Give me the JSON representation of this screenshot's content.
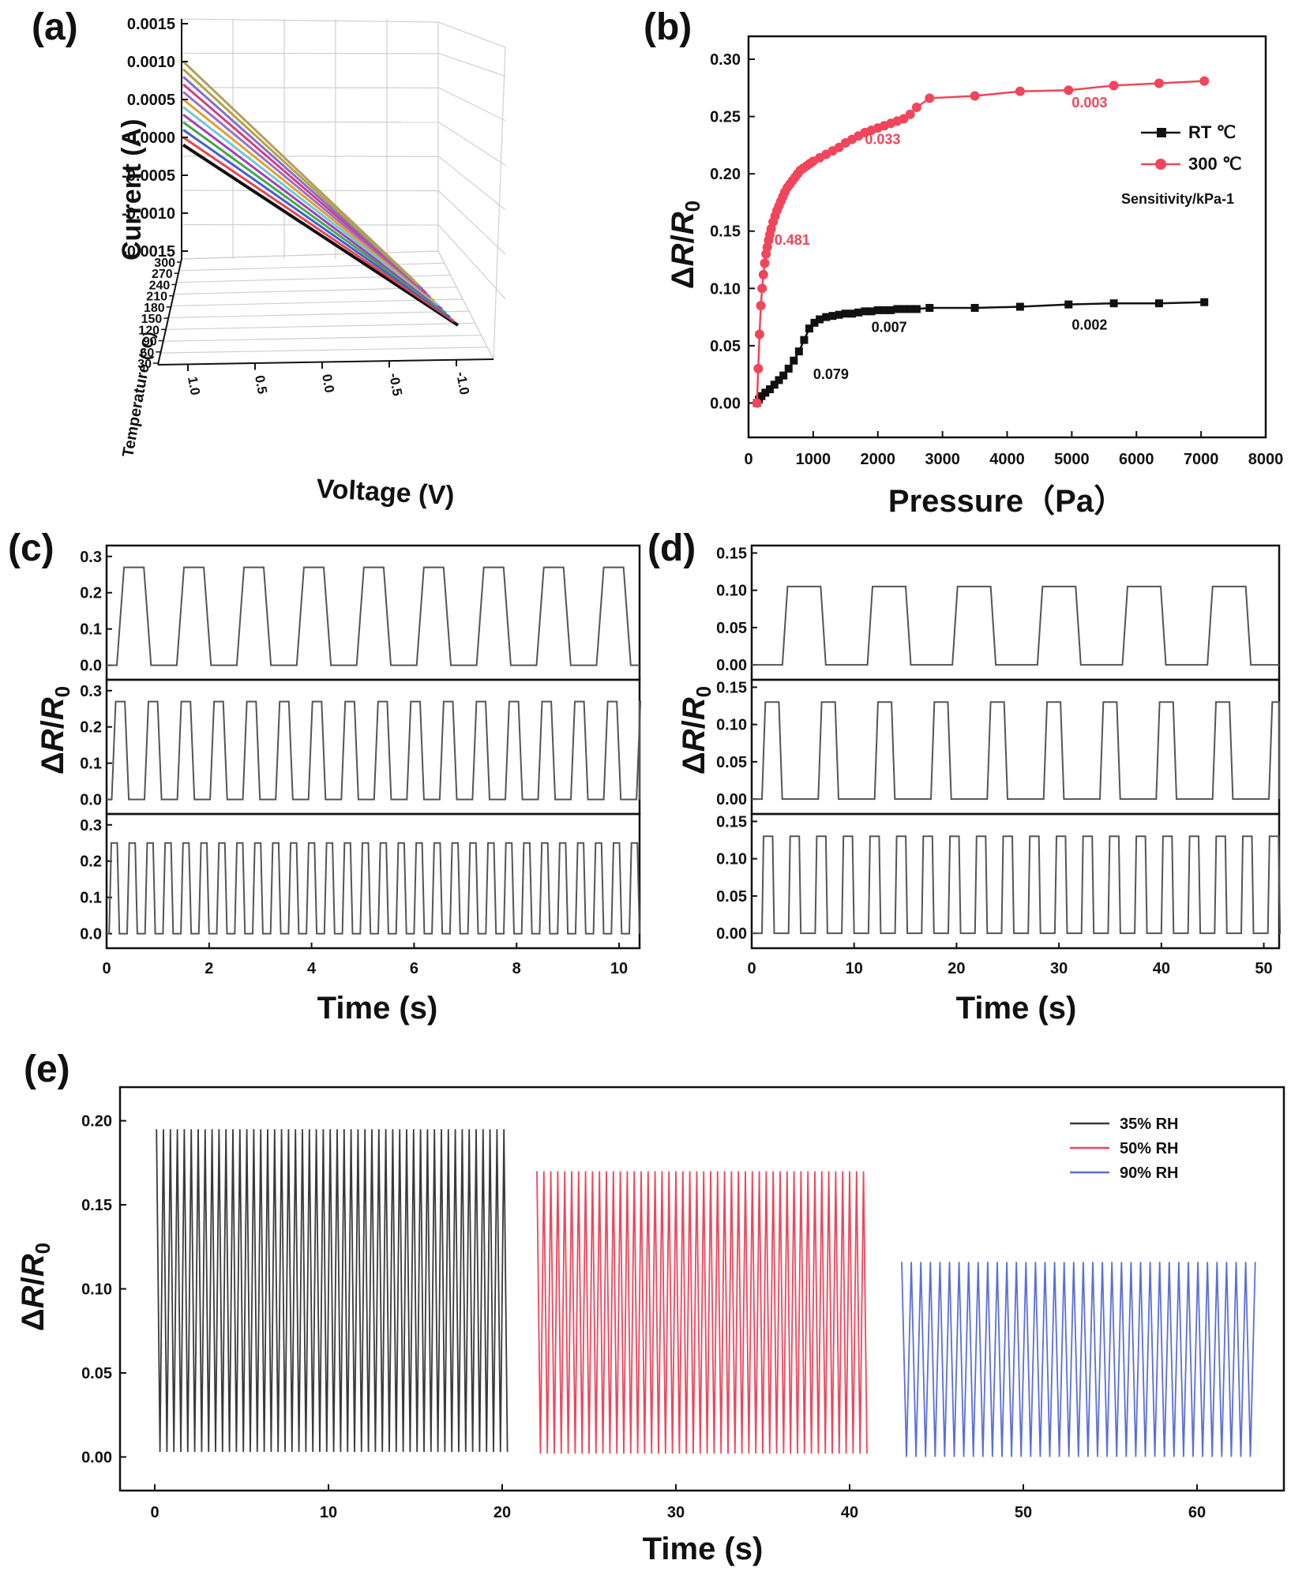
{
  "chart_data": [
    {
      "panel": "(a)",
      "type": "line",
      "xlabel": "Voltage (V)",
      "ylabel": "Current (A)",
      "zlabel": "Temperature (°C)",
      "x_ticks": [
        "1.0",
        "0.5",
        "0.0",
        "-0.5",
        "-1.0"
      ],
      "y_ticks": [
        "0.0015",
        "0.0010",
        "0.0005",
        "0.0000",
        "-0.0005",
        "-0.0010",
        "-0.0015"
      ],
      "z_ticks": [
        "300",
        "270",
        "240",
        "210",
        "180",
        "150",
        "120",
        "90",
        "60",
        "30"
      ],
      "ylim": [
        -0.0015,
        0.0015
      ],
      "series": [
        {
          "color": "#111111",
          "start": -0.0001,
          "end": -0.0016
        },
        {
          "color": "#e8434f",
          "start": 0.0,
          "end": -0.0015
        },
        {
          "color": "#3f5fd4",
          "start": 0.0001,
          "end": -0.0014
        },
        {
          "color": "#45a845",
          "start": 0.0002,
          "end": -0.0013
        },
        {
          "color": "#a040c0",
          "start": 0.0003,
          "end": -0.0012
        },
        {
          "color": "#70c8d8",
          "start": 0.0004,
          "end": -0.0011
        },
        {
          "color": "#e0a030",
          "start": 0.0005,
          "end": -0.001
        },
        {
          "color": "#9a6fc8",
          "start": 0.0006,
          "end": -0.001
        },
        {
          "color": "#d04080",
          "start": 0.0007,
          "end": -0.0009
        },
        {
          "color": "#8070d0",
          "start": 0.0008,
          "end": -0.0009
        },
        {
          "color": "#b8a040",
          "start": 0.0009,
          "end": -0.0008
        },
        {
          "color": "#b0a060",
          "start": 0.001,
          "end": -0.0008
        }
      ]
    },
    {
      "panel": "(b)",
      "type": "line",
      "xlabel": "Pressure（Pa）",
      "ylabel": "ΔR/R0",
      "xlim": [
        0,
        8000
      ],
      "ylim": [
        -0.03,
        0.32
      ],
      "x_ticks": [
        0,
        1000,
        2000,
        3000,
        4000,
        5000,
        6000,
        7000,
        8000
      ],
      "y_ticks": [
        "0.00",
        "0.05",
        "0.10",
        "0.15",
        "0.20",
        "0.25",
        "0.30"
      ],
      "legend_title": "Sensitivity/kPa-1",
      "legend_position": "right",
      "series": [
        {
          "name": "RT  ℃",
          "color": "#111111",
          "x": [
            130,
            160,
            200,
            260,
            330,
            400,
            470,
            540,
            620,
            700,
            780,
            860,
            940,
            1020,
            1100,
            1200,
            1300,
            1400,
            1500,
            1600,
            1700,
            1800,
            1900,
            2000,
            2100,
            2200,
            2300,
            2400,
            2500,
            2600,
            2800,
            3500,
            4200,
            4950,
            5650,
            6350,
            7050
          ],
          "y": [
            0.0,
            0.003,
            0.006,
            0.009,
            0.012,
            0.016,
            0.02,
            0.024,
            0.03,
            0.037,
            0.045,
            0.055,
            0.065,
            0.07,
            0.073,
            0.075,
            0.076,
            0.077,
            0.078,
            0.078,
            0.079,
            0.08,
            0.08,
            0.081,
            0.081,
            0.081,
            0.082,
            0.082,
            0.082,
            0.082,
            0.083,
            0.083,
            0.084,
            0.086,
            0.087,
            0.087,
            0.088
          ]
        },
        {
          "name": "300 ℃",
          "color": "#f0455a",
          "x": [
            130,
            150,
            170,
            190,
            210,
            230,
            250,
            270,
            290,
            310,
            330,
            350,
            380,
            410,
            440,
            470,
            500,
            530,
            560,
            600,
            640,
            680,
            720,
            760,
            800,
            850,
            900,
            950,
            1000,
            1100,
            1200,
            1300,
            1400,
            1500,
            1600,
            1700,
            1800,
            1900,
            2000,
            2100,
            2200,
            2300,
            2400,
            2500,
            2600,
            2800,
            3500,
            4200,
            4950,
            5650,
            6350,
            7050
          ],
          "y": [
            0.0,
            0.03,
            0.06,
            0.085,
            0.1,
            0.112,
            0.122,
            0.13,
            0.136,
            0.142,
            0.147,
            0.152,
            0.158,
            0.163,
            0.168,
            0.172,
            0.176,
            0.18,
            0.184,
            0.188,
            0.191,
            0.194,
            0.197,
            0.2,
            0.203,
            0.205,
            0.207,
            0.209,
            0.211,
            0.214,
            0.217,
            0.22,
            0.223,
            0.227,
            0.23,
            0.233,
            0.236,
            0.238,
            0.24,
            0.242,
            0.244,
            0.246,
            0.248,
            0.252,
            0.258,
            0.266,
            0.268,
            0.272,
            0.273,
            0.277,
            0.279,
            0.281
          ]
        }
      ],
      "annotations": [
        {
          "text": "0.481",
          "x": 400,
          "y": 0.138,
          "color": "#f0455a"
        },
        {
          "text": "0.033",
          "x": 1800,
          "y": 0.226,
          "color": "#f0455a"
        },
        {
          "text": "0.003",
          "x": 5000,
          "y": 0.258,
          "color": "#f0455a"
        },
        {
          "text": "0.079",
          "x": 1000,
          "y": 0.021,
          "color": "#111111"
        },
        {
          "text": "0.007",
          "x": 1900,
          "y": 0.062,
          "color": "#111111"
        },
        {
          "text": "0.002",
          "x": 5000,
          "y": 0.064,
          "color": "#111111"
        }
      ]
    },
    {
      "panel": "(c)",
      "type": "line",
      "xlabel": "Time (s)",
      "ylabel": "ΔR/R0",
      "xlim": [
        0,
        10.4
      ],
      "x_ticks": [
        0,
        2,
        4,
        6,
        8,
        10
      ],
      "subplots": [
        {
          "ylim": [
            -0.04,
            0.33
          ],
          "y_ticks": [
            "0.0",
            "0.1",
            "0.2",
            "0.3"
          ],
          "high": 0.27,
          "low": 0.0,
          "start": 0.2,
          "period": 1.17,
          "duty": 0.45
        },
        {
          "ylim": [
            -0.04,
            0.33
          ],
          "y_ticks": [
            "0.0",
            "0.1",
            "0.2",
            "0.3"
          ],
          "high": 0.27,
          "low": 0.0,
          "start": 0.1,
          "period": 0.64,
          "duty": 0.4
        },
        {
          "ylim": [
            -0.04,
            0.33
          ],
          "y_ticks": [
            "0.0",
            "0.1",
            "0.2",
            "0.3"
          ],
          "high": 0.25,
          "low": 0.0,
          "start": 0.05,
          "period": 0.35,
          "duty": 0.45
        }
      ]
    },
    {
      "panel": "(d)",
      "type": "line",
      "xlabel": "Time (s)",
      "ylabel": "ΔR/R0",
      "xlim": [
        0,
        51.5
      ],
      "x_ticks": [
        0,
        10,
        20,
        30,
        40,
        50
      ],
      "subplots": [
        {
          "ylim": [
            -0.02,
            0.16
          ],
          "y_ticks": [
            "0.00",
            "0.05",
            "0.10",
            "0.15"
          ],
          "high": 0.105,
          "low": 0.0,
          "start": 3.0,
          "period": 8.3,
          "duty": 0.45
        },
        {
          "ylim": [
            -0.02,
            0.16
          ],
          "y_ticks": [
            "0.00",
            "0.05",
            "0.10",
            "0.15"
          ],
          "high": 0.13,
          "low": 0.0,
          "start": 1.0,
          "period": 5.5,
          "duty": 0.3
        },
        {
          "ylim": [
            -0.02,
            0.16
          ],
          "y_ticks": [
            "0.00",
            "0.05",
            "0.10",
            "0.15"
          ],
          "high": 0.13,
          "low": 0.0,
          "start": 1.0,
          "period": 2.6,
          "duty": 0.4
        }
      ]
    },
    {
      "panel": "(e)",
      "type": "line",
      "xlabel": "Time (s)",
      "ylabel": "ΔR/R0",
      "xlim": [
        -2,
        65
      ],
      "ylim": [
        -0.02,
        0.22
      ],
      "x_ticks": [
        0,
        10,
        20,
        30,
        40,
        50,
        60
      ],
      "y_ticks": [
        "0.00",
        "0.05",
        "0.10",
        "0.15",
        "0.20"
      ],
      "legend_position": "top-right",
      "series": [
        {
          "name": "35% RH",
          "color": "#3a3a3a",
          "t_start": 0.1,
          "t_end": 20.3,
          "high": 0.195,
          "low": 0.003,
          "period": 0.4
        },
        {
          "name": "50% RH",
          "color": "#f0455a",
          "t_start": 22.0,
          "t_end": 41.2,
          "high": 0.17,
          "low": 0.002,
          "period": 0.4
        },
        {
          "name": "90% RH",
          "color": "#5a6fd8",
          "t_start": 43.0,
          "t_end": 63.6,
          "high": 0.116,
          "low": 0.0,
          "period": 0.55
        }
      ]
    }
  ]
}
